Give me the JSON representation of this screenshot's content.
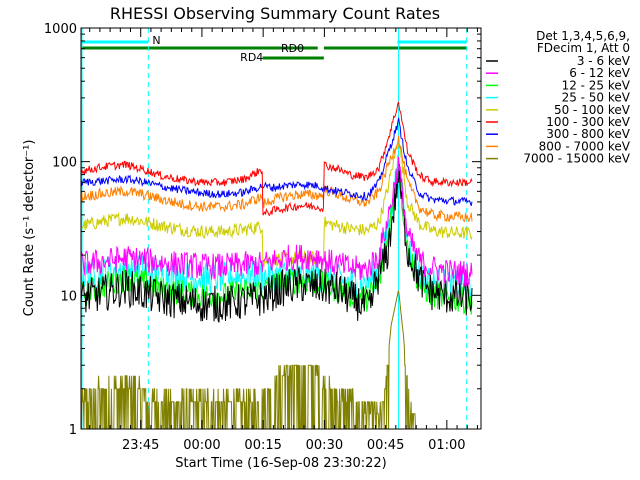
{
  "chart_data": {
    "type": "line",
    "title": "RHESSI Observing Summary Count Rates",
    "xlabel": "Start Time (16-Sep-08 23:30:22)",
    "ylabel": "Count Rate (s⁻¹ detector⁻¹)",
    "yscale": "log",
    "ylim": [
      1,
      1000
    ],
    "xlim_min_after_start": [
      0,
      98
    ],
    "x_ticks": [
      {
        "min": 14.63,
        "label": "23:45"
      },
      {
        "min": 29.63,
        "label": "00:00"
      },
      {
        "min": 44.63,
        "label": "00:15"
      },
      {
        "min": 59.63,
        "label": "00:30"
      },
      {
        "min": 74.63,
        "label": "00:45"
      },
      {
        "min": 89.63,
        "label": "01:00"
      }
    ],
    "y_ticks": [
      {
        "value": 1,
        "label": "1"
      },
      {
        "value": 10,
        "label": "10"
      },
      {
        "value": 100,
        "label": "100"
      },
      {
        "value": 1000,
        "label": "1000"
      }
    ],
    "legend": {
      "position": "right",
      "header": [
        "Det 1,3,4,5,6,9,",
        "FDecim 1, Att 0"
      ],
      "entries": [
        {
          "label": "3 - 6 keV",
          "color": "#000000"
        },
        {
          "label": "6 - 12 keV",
          "color": "#ff00ff"
        },
        {
          "label": "12 - 25 keV",
          "color": "#00ff00"
        },
        {
          "label": "25 - 50 keV",
          "color": "#00ffff"
        },
        {
          "label": "50 - 100 keV",
          "color": "#cccc00"
        },
        {
          "label": "100 - 300 keV",
          "color": "#ff0000"
        },
        {
          "label": "300 - 800 keV",
          "color": "#0000ff"
        },
        {
          "label": "800 - 7000 keV",
          "color": "#ff8000"
        },
        {
          "label": "7000 - 15000 keV",
          "color": "#808000"
        }
      ]
    },
    "flags": [
      {
        "label": "N",
        "color": "#00ffff",
        "segments": [
          [
            0,
            16.5
          ],
          [
            77.5,
            94.5
          ]
        ]
      },
      {
        "label": "RD0",
        "color": "#008000",
        "segments": [
          [
            0,
            58
          ],
          [
            59.5,
            94.5
          ]
        ]
      },
      {
        "label": "RD4",
        "color": "#008000",
        "segments": [
          [
            44.5,
            59.5
          ]
        ]
      }
    ],
    "vertical_markers": {
      "cyan_solid_min": [
        0,
        77.8
      ],
      "cyan_dashed_min": [
        16.5,
        94.5
      ]
    },
    "series": [
      {
        "name": "3 - 6 keV",
        "color": "#000000",
        "noise": 0.14,
        "points": [
          [
            0,
            9.5
          ],
          [
            6,
            10.5
          ],
          [
            11,
            11.5
          ],
          [
            15,
            10.5
          ],
          [
            20,
            9.5
          ],
          [
            25,
            9
          ],
          [
            30,
            8.6
          ],
          [
            35,
            8.6
          ],
          [
            40,
            9
          ],
          [
            44.5,
            9.5
          ],
          [
            47,
            10.5
          ],
          [
            50,
            11.5
          ],
          [
            54,
            12
          ],
          [
            58,
            11.5
          ],
          [
            60,
            11.5
          ],
          [
            63,
            11
          ],
          [
            66,
            9.5
          ],
          [
            69,
            8.5
          ],
          [
            71,
            8
          ],
          [
            72,
            12
          ],
          [
            75,
            20
          ],
          [
            77.8,
            80
          ],
          [
            80,
            22
          ],
          [
            83,
            13
          ],
          [
            86,
            10.5
          ],
          [
            90,
            9.8
          ],
          [
            95,
            9.5
          ],
          [
            96,
            9.5
          ]
        ]
      },
      {
        "name": "6 - 12 keV",
        "color": "#ff00ff",
        "noise": 0.1,
        "points": [
          [
            0,
            17
          ],
          [
            6,
            18
          ],
          [
            11,
            19
          ],
          [
            15,
            18.5
          ],
          [
            20,
            17.5
          ],
          [
            25,
            17
          ],
          [
            30,
            16.5
          ],
          [
            35,
            16.5
          ],
          [
            40,
            17
          ],
          [
            44.5,
            17
          ],
          [
            47,
            18
          ],
          [
            50,
            19
          ],
          [
            54,
            19.5
          ],
          [
            58,
            19.5
          ],
          [
            60,
            18
          ],
          [
            63,
            17
          ],
          [
            66,
            16
          ],
          [
            70,
            15.5
          ],
          [
            73,
            20
          ],
          [
            75,
            35
          ],
          [
            77.8,
            95
          ],
          [
            80,
            28
          ],
          [
            83,
            18
          ],
          [
            86,
            16
          ],
          [
            90,
            15
          ],
          [
            96,
            14.5
          ]
        ]
      },
      {
        "name": "12 - 25 keV",
        "color": "#00ff00",
        "noise": 0.1,
        "points": [
          [
            0,
            10
          ],
          [
            6,
            12
          ],
          [
            11,
            13.5
          ],
          [
            15,
            12.5
          ],
          [
            20,
            11
          ],
          [
            25,
            10.5
          ],
          [
            30,
            10
          ],
          [
            35,
            10
          ],
          [
            40,
            10.5
          ],
          [
            44.5,
            11
          ],
          [
            47,
            12
          ],
          [
            50,
            12.5
          ],
          [
            54,
            13
          ],
          [
            58,
            12.5
          ],
          [
            60,
            12
          ],
          [
            63,
            11
          ],
          [
            66,
            10
          ],
          [
            70,
            9.5
          ],
          [
            73,
            12
          ],
          [
            75,
            25
          ],
          [
            77.8,
            90
          ],
          [
            80,
            22
          ],
          [
            83,
            12
          ],
          [
            86,
            10
          ],
          [
            90,
            9.5
          ],
          [
            96,
            9
          ]
        ]
      },
      {
        "name": "25 - 50 keV",
        "color": "#00ffff",
        "noise": 0.12,
        "points": [
          [
            0,
            14
          ],
          [
            6,
            15
          ],
          [
            11,
            16
          ],
          [
            15,
            15.5
          ],
          [
            20,
            14.5
          ],
          [
            25,
            14
          ],
          [
            30,
            13.5
          ],
          [
            35,
            13.5
          ],
          [
            40,
            14
          ],
          [
            44.5,
            14
          ],
          [
            47,
            14
          ],
          [
            50,
            14
          ],
          [
            54,
            14
          ],
          [
            58,
            14
          ],
          [
            60,
            13.5
          ],
          [
            63,
            13
          ],
          [
            66,
            12.5
          ],
          [
            70,
            12.5
          ],
          [
            73,
            15
          ],
          [
            75,
            28
          ],
          [
            77.8,
            100
          ],
          [
            80,
            25
          ],
          [
            83,
            14
          ],
          [
            86,
            12.5
          ],
          [
            90,
            12
          ],
          [
            96,
            12
          ]
        ]
      },
      {
        "name": "50 - 100 keV",
        "color": "#cccc00",
        "noise": 0.05,
        "points": [
          [
            0,
            33
          ],
          [
            6,
            36
          ],
          [
            11,
            38
          ],
          [
            15,
            36
          ],
          [
            20,
            33
          ],
          [
            25,
            31
          ],
          [
            30,
            30
          ],
          [
            35,
            30
          ],
          [
            40,
            31
          ],
          [
            44.5,
            33
          ],
          [
            44.51,
            18
          ],
          [
            47,
            18.5
          ],
          [
            50,
            19
          ],
          [
            54,
            19
          ],
          [
            58,
            19
          ],
          [
            59.5,
            19
          ],
          [
            59.51,
            35
          ],
          [
            63,
            33
          ],
          [
            66,
            31.5
          ],
          [
            70,
            30.5
          ],
          [
            73,
            35
          ],
          [
            75,
            60
          ],
          [
            77.8,
            150
          ],
          [
            80,
            50
          ],
          [
            83,
            34
          ],
          [
            86,
            30.5
          ],
          [
            90,
            29.5
          ],
          [
            96,
            29
          ]
        ]
      },
      {
        "name": "100 - 300 keV",
        "color": "#ff0000",
        "noise": 0.03,
        "points": [
          [
            0,
            85
          ],
          [
            6,
            92
          ],
          [
            11,
            95
          ],
          [
            15,
            88
          ],
          [
            20,
            78
          ],
          [
            25,
            73
          ],
          [
            30,
            70
          ],
          [
            35,
            70
          ],
          [
            40,
            74
          ],
          [
            44.5,
            88
          ],
          [
            44.51,
            40
          ],
          [
            47,
            43
          ],
          [
            50,
            45
          ],
          [
            54,
            47
          ],
          [
            58,
            46
          ],
          [
            59.5,
            45
          ],
          [
            59.51,
            95
          ],
          [
            63,
            88
          ],
          [
            66,
            80
          ],
          [
            70,
            76
          ],
          [
            73,
            90
          ],
          [
            75,
            140
          ],
          [
            77.8,
            280
          ],
          [
            80,
            120
          ],
          [
            83,
            78
          ],
          [
            86,
            71
          ],
          [
            90,
            70
          ],
          [
            96,
            70
          ]
        ]
      },
      {
        "name": "300 - 800 keV",
        "color": "#0000ff",
        "noise": 0.03,
        "points": [
          [
            0,
            70
          ],
          [
            6,
            72
          ],
          [
            11,
            74
          ],
          [
            15,
            71
          ],
          [
            20,
            65
          ],
          [
            25,
            61
          ],
          [
            30,
            58
          ],
          [
            35,
            57
          ],
          [
            40,
            59
          ],
          [
            44.5,
            66
          ],
          [
            47,
            64
          ],
          [
            50,
            66
          ],
          [
            54,
            68
          ],
          [
            58,
            66
          ],
          [
            60,
            63
          ],
          [
            63,
            60
          ],
          [
            66,
            58
          ],
          [
            70,
            55
          ],
          [
            73,
            70
          ],
          [
            75,
            110
          ],
          [
            77.8,
            200
          ],
          [
            80,
            90
          ],
          [
            83,
            58
          ],
          [
            86,
            52
          ],
          [
            90,
            51
          ],
          [
            96,
            50
          ]
        ]
      },
      {
        "name": "800 - 7000 keV",
        "color": "#ff8000",
        "noise": 0.04,
        "points": [
          [
            0,
            55
          ],
          [
            6,
            58
          ],
          [
            11,
            60
          ],
          [
            15,
            57
          ],
          [
            20,
            52
          ],
          [
            25,
            48
          ],
          [
            30,
            46
          ],
          [
            35,
            46
          ],
          [
            40,
            48
          ],
          [
            44.5,
            55
          ],
          [
            44.51,
            48
          ],
          [
            47,
            52
          ],
          [
            50,
            55
          ],
          [
            54,
            57
          ],
          [
            58,
            56
          ],
          [
            59.5,
            56
          ],
          [
            59.51,
            62
          ],
          [
            63,
            57
          ],
          [
            66,
            52
          ],
          [
            70,
            49
          ],
          [
            73,
            60
          ],
          [
            75,
            90
          ],
          [
            77.8,
            150
          ],
          [
            80,
            70
          ],
          [
            83,
            45
          ],
          [
            86,
            40
          ],
          [
            90,
            39
          ],
          [
            96,
            38
          ]
        ]
      },
      {
        "name": "7000 - 15000 keV",
        "color": "#808000",
        "noise": 0,
        "points": [
          [
            0,
            1.5
          ],
          [
            5,
            1.8
          ],
          [
            11,
            2
          ],
          [
            15,
            1.8
          ],
          [
            16.5,
            1.5
          ],
          [
            44,
            1.5
          ],
          [
            46,
            1.8
          ],
          [
            50,
            2.5
          ],
          [
            54,
            2.8
          ],
          [
            58,
            2.5
          ],
          [
            60,
            1.8
          ],
          [
            66,
            1.5
          ],
          [
            74,
            1.2
          ],
          [
            75,
            3
          ],
          [
            76,
            6
          ],
          [
            77.8,
            11
          ],
          [
            79,
            5
          ],
          [
            80,
            2
          ],
          [
            81,
            1.2
          ],
          [
            82,
            1
          ]
        ]
      }
    ]
  }
}
